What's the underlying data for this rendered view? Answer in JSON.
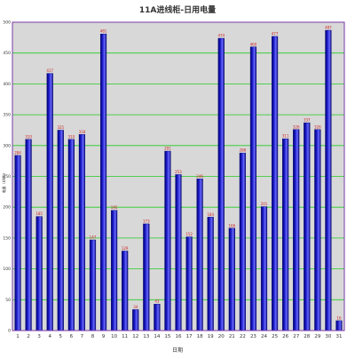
{
  "chart_data": {
    "type": "bar",
    "title": "11A进线柜-日用电量",
    "xlabel": "日期",
    "ylabel": "电量（kWh）",
    "categories": [
      "1",
      "2",
      "3",
      "4",
      "5",
      "6",
      "7",
      "8",
      "9",
      "10",
      "11",
      "12",
      "13",
      "14",
      "15",
      "16",
      "17",
      "18",
      "19",
      "20",
      "21",
      "22",
      "23",
      "24",
      "25",
      "26",
      "27",
      "28",
      "29",
      "30",
      "31"
    ],
    "values": [
      284,
      310,
      185,
      417,
      325,
      310,
      318,
      147,
      481,
      195,
      129,
      34,
      173,
      43,
      291,
      253,
      152,
      246,
      184,
      474,
      166,
      288,
      460,
      201,
      477,
      311,
      326,
      337,
      326,
      487,
      16
    ],
    "data_labels": [
      "284",
      "310",
      "185",
      "417",
      "325",
      "310",
      "318",
      "147",
      "481",
      "195",
      "129",
      "34",
      "173",
      "43",
      "291",
      "253",
      "152",
      "246",
      "184",
      "474",
      "166",
      "288",
      "460",
      "201",
      "477",
      "311",
      "326",
      "337",
      "326",
      "487",
      "16"
    ],
    "ylim": [
      0,
      500
    ],
    "yticks": [
      "0",
      "50",
      "100",
      "150",
      "200",
      "250",
      "300",
      "350",
      "400",
      "450",
      "500"
    ],
    "grid": true,
    "legend": "none",
    "colors": {
      "bar_fill": "#1c1cc8",
      "bar_dark": "#000070",
      "bar_light": "#6a6aff",
      "plot_bg": "#d8d8d8",
      "grid": "#22cc22",
      "frame": "#7a3aa8",
      "data_label": "#cc2222"
    }
  }
}
